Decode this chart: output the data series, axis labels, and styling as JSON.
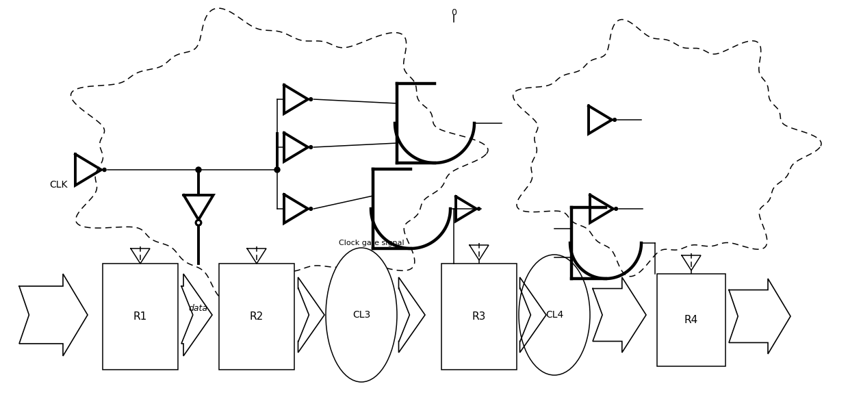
{
  "bg_color": "#ffffff",
  "line_color": "#1a1a1a",
  "lw_thin": 1.1,
  "lw_thick": 2.8,
  "lw_gate": 3.2,
  "fig_w": 12.39,
  "fig_h": 5.77,
  "clk_label": "CLK",
  "data_label": "data",
  "cgs_label": "Clock gate signal",
  "zero_label": "0",
  "r1_label": "R1",
  "r2_label": "R2",
  "r3_label": "R3",
  "r4_label": "R4",
  "cl3_label": "CL3",
  "cl4_label": "CL4"
}
